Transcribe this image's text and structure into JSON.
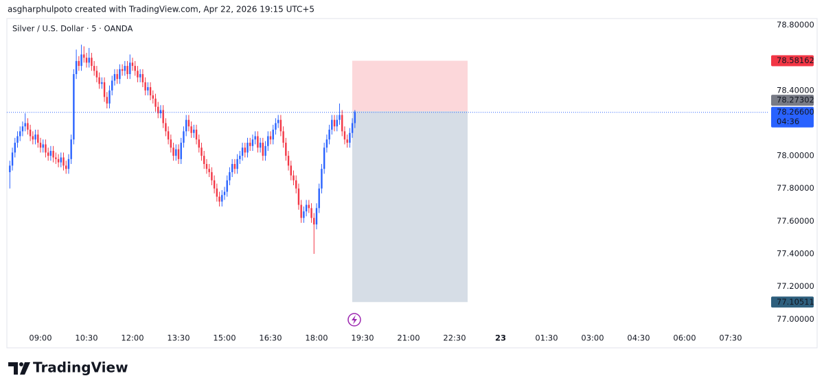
{
  "credit": "asgharphulpoto created with TradingView.com, Apr 22, 2026 19:15 UTC+5",
  "logo": "TradingView",
  "chart_data": {
    "type": "candlestick",
    "title": "Silver / U.S. Dollar · 5 · OANDA",
    "x": [
      "08:00",
      "08:05",
      "08:10",
      "08:15",
      "08:20",
      "08:25",
      "08:30",
      "08:35",
      "08:40",
      "08:45",
      "08:50",
      "08:55",
      "09:00",
      "09:05",
      "09:10",
      "09:15",
      "09:20",
      "09:25",
      "09:30",
      "09:35",
      "09:40",
      "09:45",
      "09:50",
      "09:55",
      "10:00",
      "10:05",
      "10:10",
      "10:15",
      "10:20",
      "10:25",
      "10:30",
      "10:35",
      "10:40",
      "10:45",
      "10:50",
      "10:55",
      "11:00",
      "11:05",
      "11:10",
      "11:15",
      "11:20",
      "11:25",
      "11:30",
      "11:35",
      "11:40",
      "11:45",
      "11:50",
      "11:55",
      "12:00",
      "12:05",
      "12:10",
      "12:15",
      "12:20",
      "12:25",
      "12:30",
      "12:35",
      "12:40",
      "12:45",
      "12:50",
      "12:55",
      "13:00",
      "13:05",
      "13:10",
      "13:15",
      "13:20",
      "13:25",
      "13:30",
      "13:35",
      "13:40",
      "13:45",
      "13:50",
      "13:55",
      "14:00",
      "14:05",
      "14:10",
      "14:15",
      "14:20",
      "14:25",
      "14:30",
      "14:35",
      "14:40",
      "14:45",
      "14:50",
      "14:55",
      "15:00",
      "15:05",
      "15:10",
      "15:15",
      "15:20",
      "15:25",
      "15:30",
      "15:35",
      "15:40",
      "15:45",
      "15:50",
      "15:55",
      "16:00",
      "16:05",
      "16:10",
      "16:15",
      "16:20",
      "16:25",
      "16:30",
      "16:35",
      "16:40",
      "16:45",
      "16:50",
      "16:55",
      "17:00",
      "17:05",
      "17:10",
      "17:15",
      "17:20",
      "17:25",
      "17:30",
      "17:35",
      "17:40",
      "17:45",
      "17:50",
      "17:55",
      "18:00",
      "18:05",
      "18:10",
      "18:15",
      "18:20",
      "18:25",
      "18:30",
      "18:35",
      "18:40",
      "18:45",
      "18:50",
      "18:55",
      "19:00",
      "19:05",
      "19:10",
      "19:15"
    ],
    "open": [
      77.9,
      77.94,
      78.02,
      78.08,
      78.12,
      78.15,
      78.18,
      78.2,
      78.16,
      78.12,
      78.1,
      78.13,
      78.08,
      78.05,
      78.07,
      78.02,
      78.0,
      78.03,
      77.99,
      77.98,
      77.96,
      77.99,
      77.94,
      77.92,
      77.98,
      78.1,
      78.5,
      78.58,
      78.55,
      78.62,
      78.6,
      78.57,
      78.6,
      78.55,
      78.52,
      78.48,
      78.44,
      78.45,
      78.36,
      78.32,
      78.4,
      78.46,
      78.5,
      78.47,
      78.53,
      78.52,
      78.55,
      78.5,
      78.57,
      78.55,
      78.52,
      78.48,
      78.5,
      78.45,
      78.4,
      78.42,
      78.37,
      78.35,
      78.3,
      78.26,
      78.28,
      78.2,
      78.15,
      78.1,
      78.05,
      78.0,
      78.04,
      77.98,
      78.08,
      78.15,
      78.22,
      78.18,
      78.14,
      78.16,
      78.1,
      78.05,
      78.0,
      77.95,
      77.92,
      77.9,
      77.85,
      77.8,
      77.75,
      77.72,
      77.76,
      77.78,
      77.85,
      77.9,
      77.95,
      77.92,
      77.98,
      78.0,
      78.05,
      78.02,
      78.08,
      78.06,
      78.1,
      78.12,
      78.05,
      78.08,
      78.0,
      78.06,
      78.12,
      78.1,
      78.16,
      78.2,
      78.22,
      78.15,
      78.08,
      78.0,
      77.94,
      77.88,
      77.85,
      77.8,
      77.7,
      77.62,
      77.66,
      77.7,
      77.68,
      77.62,
      77.58,
      77.68,
      77.8,
      77.92,
      78.05,
      78.1,
      78.16,
      78.22,
      78.18,
      78.22,
      78.25,
      78.15,
      78.1,
      78.08,
      78.14,
      78.2
    ],
    "high": [
      77.97,
      78.05,
      78.11,
      78.15,
      78.18,
      78.21,
      78.26,
      78.23,
      78.19,
      78.15,
      78.16,
      78.16,
      78.11,
      78.1,
      78.1,
      78.05,
      78.06,
      78.06,
      78.02,
      78.01,
      78.02,
      78.02,
      77.97,
      78.01,
      78.13,
      78.53,
      78.65,
      78.61,
      78.68,
      78.67,
      78.63,
      78.66,
      78.63,
      78.58,
      78.55,
      78.51,
      78.48,
      78.48,
      78.39,
      78.43,
      78.49,
      78.53,
      78.53,
      78.56,
      78.56,
      78.58,
      78.58,
      78.62,
      78.6,
      78.58,
      78.55,
      78.53,
      78.53,
      78.48,
      78.45,
      78.45,
      78.4,
      78.38,
      78.33,
      78.31,
      78.31,
      78.23,
      78.18,
      78.13,
      78.08,
      78.07,
      78.07,
      78.11,
      78.18,
      78.25,
      78.25,
      78.21,
      78.19,
      78.19,
      78.13,
      78.08,
      78.03,
      77.98,
      77.95,
      77.93,
      77.88,
      77.83,
      77.78,
      77.79,
      77.81,
      77.88,
      77.93,
      77.98,
      77.98,
      78.01,
      78.03,
      78.08,
      78.08,
      78.11,
      78.11,
      78.13,
      78.15,
      78.15,
      78.11,
      78.11,
      78.09,
      78.15,
      78.15,
      78.19,
      78.23,
      78.25,
      78.25,
      78.18,
      78.11,
      78.03,
      77.97,
      77.91,
      77.88,
      77.83,
      77.73,
      77.69,
      77.73,
      77.73,
      77.71,
      77.65,
      77.71,
      77.83,
      77.95,
      78.08,
      78.13,
      78.19,
      78.25,
      78.25,
      78.25,
      78.32,
      78.28,
      78.18,
      78.13,
      78.17,
      78.23,
      78.28
    ],
    "low": [
      77.8,
      77.91,
      77.99,
      78.05,
      78.09,
      78.12,
      78.15,
      78.13,
      78.09,
      78.07,
      78.07,
      78.05,
      78.02,
      78.02,
      77.99,
      77.97,
      77.97,
      77.96,
      77.95,
      77.93,
      77.93,
      77.91,
      77.89,
      77.89,
      77.95,
      78.07,
      78.47,
      78.52,
      78.52,
      78.57,
      78.54,
      78.54,
      78.52,
      78.49,
      78.45,
      78.41,
      78.41,
      78.33,
      78.29,
      78.29,
      78.37,
      78.43,
      78.44,
      78.44,
      78.49,
      78.49,
      78.47,
      78.47,
      78.52,
      78.49,
      78.45,
      78.45,
      78.42,
      78.37,
      78.37,
      78.34,
      78.32,
      78.27,
      78.23,
      78.23,
      78.17,
      78.12,
      78.07,
      78.02,
      77.97,
      77.97,
      77.95,
      77.95,
      78.05,
      78.12,
      78.15,
      78.11,
      78.11,
      78.07,
      78.02,
      77.97,
      77.92,
      77.89,
      77.87,
      77.82,
      77.77,
      77.72,
      77.69,
      77.69,
      77.73,
      77.75,
      77.82,
      77.87,
      77.89,
      77.89,
      77.95,
      77.97,
      77.99,
      77.99,
      78.03,
      78.03,
      78.07,
      78.02,
      78.02,
      77.97,
      77.97,
      78.03,
      78.07,
      78.07,
      78.13,
      78.17,
      78.12,
      78.05,
      77.97,
      77.91,
      77.85,
      77.82,
      77.77,
      77.67,
      77.59,
      77.59,
      77.63,
      77.65,
      77.59,
      77.4,
      77.55,
      77.65,
      77.77,
      77.89,
      78.02,
      78.07,
      78.13,
      78.15,
      78.15,
      78.19,
      78.12,
      78.07,
      78.05,
      78.05,
      78.11,
      78.17
    ],
    "close": [
      77.94,
      78.02,
      78.08,
      78.12,
      78.15,
      78.18,
      78.2,
      78.16,
      78.12,
      78.1,
      78.13,
      78.08,
      78.05,
      78.07,
      78.02,
      78.0,
      78.03,
      77.99,
      77.98,
      77.96,
      77.99,
      77.94,
      77.92,
      77.98,
      78.1,
      78.5,
      78.58,
      78.55,
      78.62,
      78.6,
      78.57,
      78.6,
      78.55,
      78.52,
      78.48,
      78.44,
      78.45,
      78.36,
      78.32,
      78.4,
      78.46,
      78.5,
      78.47,
      78.53,
      78.52,
      78.55,
      78.5,
      78.57,
      78.55,
      78.52,
      78.48,
      78.5,
      78.45,
      78.4,
      78.42,
      78.37,
      78.35,
      78.3,
      78.26,
      78.28,
      78.2,
      78.15,
      78.1,
      78.05,
      78.0,
      78.04,
      77.98,
      78.08,
      78.15,
      78.22,
      78.18,
      78.14,
      78.16,
      78.1,
      78.05,
      78.0,
      77.95,
      77.92,
      77.9,
      77.85,
      77.8,
      77.75,
      77.72,
      77.76,
      77.78,
      77.85,
      77.9,
      77.95,
      77.92,
      77.98,
      78.0,
      78.05,
      78.02,
      78.08,
      78.06,
      78.1,
      78.12,
      78.05,
      78.08,
      78.0,
      78.06,
      78.12,
      78.1,
      78.16,
      78.2,
      78.22,
      78.15,
      78.08,
      78.0,
      77.94,
      77.88,
      77.85,
      77.8,
      77.7,
      77.62,
      77.66,
      77.7,
      77.68,
      77.62,
      77.58,
      77.68,
      77.8,
      77.92,
      78.05,
      78.1,
      78.16,
      78.22,
      78.18,
      78.22,
      78.25,
      78.15,
      78.1,
      78.08,
      78.14,
      78.2,
      78.27
    ],
    "up_color": "#2962ff",
    "down_color": "#f23645",
    "ylim": [
      76.93,
      78.84
    ],
    "yticks": [
      {
        "value": 77.0,
        "label": "77.00000"
      },
      {
        "value": 77.2,
        "label": "77.20000"
      },
      {
        "value": 77.4,
        "label": "77.40000"
      },
      {
        "value": 77.6,
        "label": "77.60000"
      },
      {
        "value": 77.8,
        "label": "77.80000"
      },
      {
        "value": 78.0,
        "label": "78.00000"
      },
      {
        "value": 78.4,
        "label": "78.40000"
      },
      {
        "value": 78.8,
        "label": "78.80000"
      }
    ],
    "xticks": [
      "09:00",
      "10:30",
      "12:00",
      "13:30",
      "15:00",
      "16:30",
      "18:00",
      "19:30",
      "21:00",
      "22:30",
      "23",
      "01:30",
      "03:00",
      "04:30",
      "06:00",
      "07:30"
    ],
    "current_price": {
      "value": 78.266,
      "label": "78.26600",
      "countdown": "04:36"
    },
    "position": {
      "stop": 78.58162,
      "entry": 78.27302,
      "target": 77.10511
    }
  }
}
